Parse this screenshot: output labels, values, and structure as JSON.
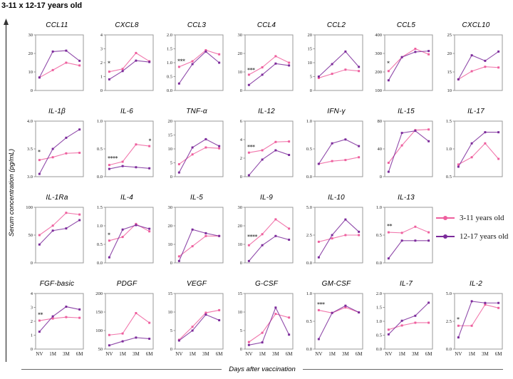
{
  "title": "3-11 x 12-17 years old",
  "y_axis_label": "Serum concentration (pg/mL)",
  "x_axis_label": "Days after vaccination",
  "legend": {
    "series": [
      {
        "label": "3-11 years old",
        "color": "#ee5f9e"
      },
      {
        "label": "12-17 years old",
        "color": "#7c2b9b"
      }
    ]
  },
  "colors": {
    "pink": "#ee5f9e",
    "purple": "#7c2b9b",
    "panel_border": "#999999",
    "axis": "#333333"
  },
  "chart_data": {
    "type": "line",
    "x_categories": [
      "NV",
      "1M",
      "3M",
      "6M"
    ],
    "series_names": [
      "3-11 years old",
      "12-17 years old"
    ],
    "series_colors": [
      "#ee5f9e",
      "#7c2b9b"
    ],
    "panels": [
      {
        "title": "CCL11",
        "ylim": [
          0,
          30
        ],
        "yticks": [
          "0",
          "10",
          "20",
          "30"
        ],
        "series": {
          "3-11 years old": [
            7,
            11,
            15,
            13.5
          ],
          "12-17 years old": [
            7,
            21,
            21.5,
            16
          ]
        },
        "sig": []
      },
      {
        "title": "CXCL8",
        "ylim": [
          0,
          4
        ],
        "yticks": [
          "0",
          "1",
          "2",
          "3",
          "4"
        ],
        "series": {
          "3-11 years old": [
            1.35,
            1.55,
            2.7,
            2.1
          ],
          "12-17 years old": [
            0.8,
            1.4,
            2.15,
            2.05
          ]
        },
        "sig": [
          {
            "label": "*",
            "at": "NV",
            "y": 1.95
          }
        ]
      },
      {
        "title": "CCL3",
        "ylim": [
          0,
          2
        ],
        "yticks": [
          "0.0",
          "0.5",
          "1.0",
          "1.5",
          "2.0"
        ],
        "series": {
          "3-11 years old": [
            0.85,
            1.05,
            1.45,
            1.3
          ],
          "12-17 years old": [
            0.25,
            0.95,
            1.4,
            1.0
          ]
        },
        "sig": [
          {
            "label": "***",
            "at": "NV",
            "y": 1.05
          }
        ]
      },
      {
        "title": "CCL4",
        "ylim": [
          0,
          30
        ],
        "yticks": [
          "0",
          "10",
          "20",
          "30"
        ],
        "series": {
          "3-11 years old": [
            8.5,
            12.5,
            18.5,
            15
          ],
          "12-17 years old": [
            3,
            8.5,
            14.5,
            13.5
          ]
        },
        "sig": [
          {
            "label": "***",
            "at": "NV",
            "y": 11
          }
        ]
      },
      {
        "title": "CCL2",
        "ylim": [
          0,
          20
        ],
        "yticks": [
          "0",
          "5",
          "10",
          "15",
          "20"
        ],
        "series": {
          "3-11 years old": [
            4.5,
            6,
            7.5,
            7
          ],
          "12-17 years old": [
            5,
            9.5,
            14,
            8.5
          ]
        },
        "sig": []
      },
      {
        "title": "CCL5",
        "ylim": [
          100,
          400
        ],
        "yticks": [
          "100",
          "200",
          "300",
          "400"
        ],
        "series": {
          "3-11 years old": [
            205,
            280,
            325,
            295
          ],
          "12-17 years old": [
            155,
            280,
            308,
            313
          ]
        },
        "sig": [
          {
            "label": "*",
            "at": "NV",
            "y": 247
          }
        ]
      },
      {
        "title": "CXCL10",
        "ylim": [
          10,
          25
        ],
        "yticks": [
          "10",
          "15",
          "20",
          "25"
        ],
        "series": {
          "3-11 years old": [
            13,
            15.2,
            16.4,
            16.2
          ],
          "12-17 years old": [
            13,
            19.5,
            18,
            20.5
          ]
        },
        "sig": []
      },
      {
        "title": "IL-1β",
        "ylim": [
          3,
          4
        ],
        "yticks": [
          "3.0",
          "3.5",
          "4.0"
        ],
        "series": {
          "3-11 years old": [
            3.3,
            3.35,
            3.42,
            3.43
          ],
          "12-17 years old": [
            3.05,
            3.5,
            3.7,
            3.85
          ]
        },
        "sig": [
          {
            "label": "*",
            "at": "NV",
            "y": 3.44
          }
        ]
      },
      {
        "title": "IL-6",
        "ylim": [
          0,
          1
        ],
        "yticks": [
          "0.0",
          "0.5",
          "1.0"
        ],
        "series": {
          "3-11 years old": [
            0.21,
            0.27,
            0.58,
            0.55
          ],
          "12-17 years old": [
            0.14,
            0.19,
            0.17,
            0.15
          ]
        },
        "sig": [
          {
            "label": "****",
            "at": "NV",
            "y": 0.33
          },
          {
            "label": "*",
            "at": "6M",
            "y": 0.64
          }
        ]
      },
      {
        "title": "TNF-α",
        "ylim": [
          0,
          20
        ],
        "yticks": [
          "0",
          "5",
          "10",
          "15",
          "20"
        ],
        "series": {
          "3-11 years old": [
            4.5,
            8,
            10.5,
            10.2
          ],
          "12-17 years old": [
            1.5,
            10.5,
            13.5,
            11
          ]
        },
        "sig": []
      },
      {
        "title": "IL-12",
        "ylim": [
          0,
          6
        ],
        "yticks": [
          "0",
          "2",
          "4",
          "6"
        ],
        "series": {
          "3-11 years old": [
            2.6,
            2.85,
            3.75,
            3.8
          ],
          "12-17 years old": [
            0.15,
            1.85,
            2.85,
            2.35
          ]
        },
        "sig": [
          {
            "label": "***",
            "at": "NV",
            "y": 3.2
          }
        ]
      },
      {
        "title": "IFN-γ",
        "ylim": [
          0,
          1
        ],
        "yticks": [
          "0.0",
          "0.5",
          "1.0"
        ],
        "series": {
          "3-11 years old": [
            0.23,
            0.28,
            0.3,
            0.35
          ],
          "12-17 years old": [
            0.23,
            0.6,
            0.67,
            0.55
          ]
        },
        "sig": []
      },
      {
        "title": "IL-15",
        "ylim": [
          0,
          80
        ],
        "yticks": [
          "0",
          "40",
          "80"
        ],
        "series": {
          "3-11 years old": [
            20,
            45,
            67,
            68
          ],
          "12-17 years old": [
            7,
            63,
            66,
            51
          ]
        },
        "sig": []
      },
      {
        "title": "IL-17",
        "ylim": [
          0.5,
          1.5
        ],
        "yticks": [
          "0.5",
          "1.0",
          "1.5"
        ],
        "series": {
          "3-11 years old": [
            0.72,
            0.85,
            1.1,
            0.82
          ],
          "12-17 years old": [
            0.68,
            1.1,
            1.3,
            1.3
          ]
        },
        "sig": []
      },
      {
        "title": "IL-1Ra",
        "ylim": [
          0,
          100
        ],
        "yticks": [
          "0",
          "50",
          "100"
        ],
        "series": {
          "3-11 years old": [
            50,
            67,
            90,
            87
          ],
          "12-17 years old": [
            33,
            58,
            62,
            77
          ]
        },
        "sig": []
      },
      {
        "title": "IL-4",
        "ylim": [
          0,
          1.5
        ],
        "yticks": [
          "0.0",
          "0.5",
          "1.0",
          "1.5"
        ],
        "series": {
          "3-11 years old": [
            0.6,
            0.7,
            1.05,
            0.85
          ],
          "12-17 years old": [
            0.15,
            0.9,
            1.02,
            0.92
          ]
        },
        "sig": [
          {
            "label": "*",
            "at": "NV",
            "y": 0.75
          }
        ]
      },
      {
        "title": "IL-5",
        "ylim": [
          0,
          30
        ],
        "yticks": [
          "0",
          "10",
          "20",
          "30"
        ],
        "series": {
          "3-11 years old": [
            3.5,
            9,
            14.5,
            14.5
          ],
          "12-17 years old": [
            1,
            18,
            16,
            14.5
          ]
        },
        "sig": []
      },
      {
        "title": "IL-9",
        "ylim": [
          0,
          30
        ],
        "yticks": [
          "0",
          "10",
          "20",
          "30"
        ],
        "series": {
          "3-11 years old": [
            9.5,
            15.5,
            23.5,
            18.5
          ],
          "12-17 years old": [
            1,
            9.5,
            14.5,
            12.5
          ]
        },
        "sig": [
          {
            "label": "****",
            "at": "NV",
            "y": 14
          }
        ]
      },
      {
        "title": "IL-10",
        "ylim": [
          0,
          5
        ],
        "yticks": [
          "0.0",
          "2.5",
          "5.0"
        ],
        "series": {
          "3-11 years old": [
            1.9,
            2.2,
            2.5,
            2.5
          ],
          "12-17 years old": [
            0.5,
            2.5,
            3.9,
            2.8
          ]
        },
        "sig": []
      },
      {
        "title": "IL-13",
        "ylim": [
          0,
          1
        ],
        "yticks": [
          "0.0",
          "0.5",
          "1.0"
        ],
        "series": {
          "3-11 years old": [
            0.55,
            0.54,
            0.65,
            0.55
          ],
          "12-17 years old": [
            0.08,
            0.4,
            0.4,
            0.4
          ]
        },
        "sig": [
          {
            "label": "**",
            "at": "NV",
            "y": 0.66
          }
        ]
      },
      {
        "title": "FGF-basic",
        "ylim": [
          0,
          4
        ],
        "yticks": [
          "0",
          "1",
          "2",
          "3",
          "4"
        ],
        "series": {
          "3-11 years old": [
            2.05,
            2.2,
            2.3,
            2.25
          ],
          "12-17 years old": [
            1.25,
            2.35,
            3.05,
            2.85
          ]
        },
        "sig": [
          {
            "label": "**",
            "at": "NV",
            "y": 2.45
          }
        ]
      },
      {
        "title": "PDGF",
        "ylim": [
          50,
          200
        ],
        "yticks": [
          "50",
          "100",
          "150",
          "200"
        ],
        "series": {
          "3-11 years old": [
            88,
            92,
            147,
            121
          ],
          "12-17 years old": [
            60,
            71,
            81,
            78
          ]
        },
        "sig": []
      },
      {
        "title": "VEGF",
        "ylim": [
          0,
          15
        ],
        "yticks": [
          "0",
          "5",
          "10",
          "15"
        ],
        "series": {
          "3-11 years old": [
            2.5,
            6,
            9.8,
            10.5
          ],
          "12-17 years old": [
            2.3,
            5,
            9.3,
            7.8
          ]
        },
        "sig": []
      },
      {
        "title": "G-CSF",
        "ylim": [
          0,
          15
        ],
        "yticks": [
          "0",
          "5",
          "10",
          "15"
        ],
        "series": {
          "3-11 years old": [
            1.9,
            4.4,
            9.5,
            8.5
          ],
          "12-17 years old": [
            1.1,
            1.8,
            11.2,
            3.9
          ]
        },
        "sig": []
      },
      {
        "title": "GM-CSF",
        "ylim": [
          0,
          1
        ],
        "yticks": [
          "0.0",
          "0.5",
          "1.0"
        ],
        "series": {
          "3-11 years old": [
            0.7,
            0.65,
            0.75,
            0.66
          ],
          "12-17 years old": [
            0.18,
            0.65,
            0.78,
            0.66
          ]
        },
        "sig": [
          {
            "label": "***",
            "at": "NV",
            "y": 0.8
          }
        ]
      },
      {
        "title": "IL-7",
        "ylim": [
          0,
          2
        ],
        "yticks": [
          "0.0",
          "0.5",
          "1.0",
          "1.5",
          "2.0"
        ],
        "series": {
          "3-11 years old": [
            0.7,
            0.85,
            0.95,
            0.95
          ],
          "12-17 years old": [
            0.53,
            1.02,
            1.2,
            1.67
          ]
        },
        "sig": []
      },
      {
        "title": "IL-2",
        "ylim": [
          0,
          5
        ],
        "yticks": [
          "0.0",
          "2.5",
          "5.0"
        ],
        "series": {
          "3-11 years old": [
            2.1,
            2.1,
            4.0,
            3.7
          ],
          "12-17 years old": [
            1.05,
            4.3,
            4.15,
            4.15
          ]
        },
        "sig": [
          {
            "label": "*",
            "at": "NV",
            "y": 2.65
          }
        ]
      }
    ]
  }
}
